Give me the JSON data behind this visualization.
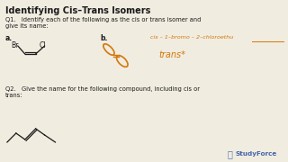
{
  "title": "Identifying Cis–Trans Isomers",
  "bg_color": "#f0ece0",
  "title_color": "#1a1a1a",
  "text_color": "#1a1a1a",
  "orange_color": "#d4780a",
  "q1_text_1": "Q1.   Identify each of the following as the cis or trans isomer and",
  "q1_text_2": "give its name:",
  "q2_text_1": "Q2.   Give the name for the following compound, including cis or",
  "q2_text_2": "trans:",
  "label_a": "a.",
  "label_b": "b.",
  "handwritten_line1": "cis – 1–bromo – 2–chloroethu",
  "handwritten_line2": "trans*",
  "studyforce_text": "StudyForce",
  "br_label": "Br",
  "cl_label": "Cl"
}
